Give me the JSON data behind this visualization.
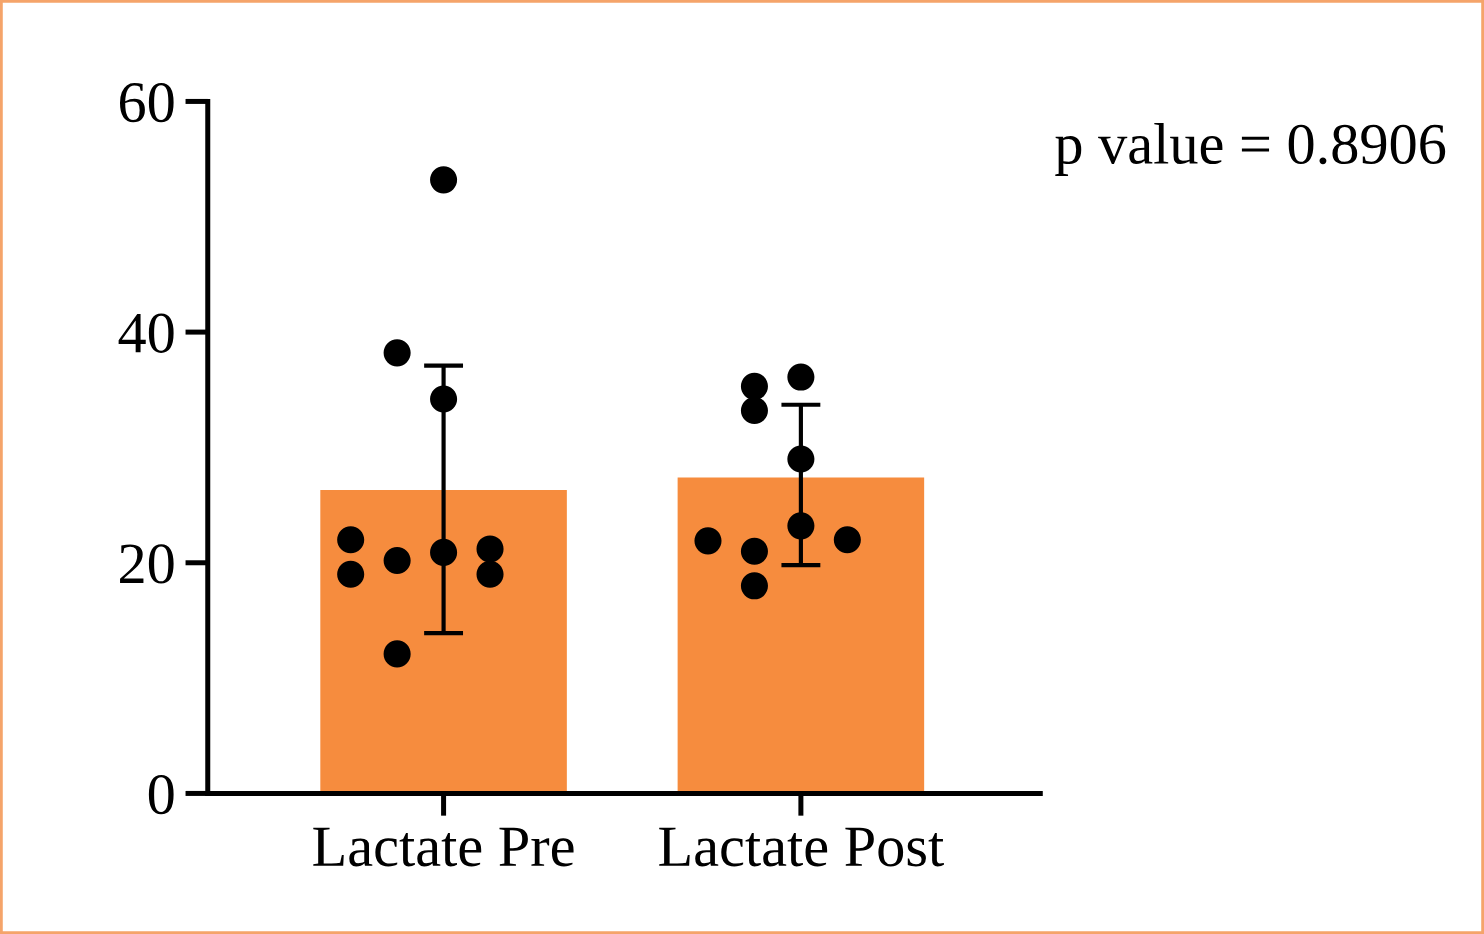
{
  "chart_data": {
    "type": "bar",
    "categories": [
      "Lactate Pre",
      "Lactate Post"
    ],
    "values": [
      26.3,
      27.4
    ],
    "color": "#f68c3e",
    "errors": [
      [
        13.9,
        37.1
      ],
      [
        19.8,
        33.7
      ]
    ],
    "series": [
      {
        "type": "scatter",
        "color": "#000000",
        "x": [
          "Lactate Pre",
          "Lactate Pre",
          "Lactate Pre",
          "Lactate Pre",
          "Lactate Pre",
          "Lactate Pre",
          "Lactate Pre",
          "Lactate Pre",
          "Lactate Pre",
          "Lactate Pre"
        ],
        "values": [
          20.9,
          20.2,
          19.0,
          53.2,
          38.2,
          34.2,
          12.1,
          21.2,
          19.0,
          22.0
        ]
      },
      {
        "type": "scatter",
        "color": "#000000",
        "x": [
          "Lactate Post",
          "Lactate Post",
          "Lactate Post",
          "Lactate Post",
          "Lactate Post",
          "Lactate Post",
          "Lactate Post",
          "Lactate Post",
          "Lactate Post"
        ],
        "values": [
          36.1,
          23.2,
          21.0,
          35.3,
          29.0,
          22.0,
          18.0,
          33.2,
          21.9
        ]
      }
    ],
    "ylim": [
      0,
      60
    ],
    "yticks": [
      0,
      20,
      40,
      60
    ],
    "marker": "circle",
    "grid": false,
    "legend": false,
    "annotations": [
      "p value = 0.8906"
    ]
  }
}
